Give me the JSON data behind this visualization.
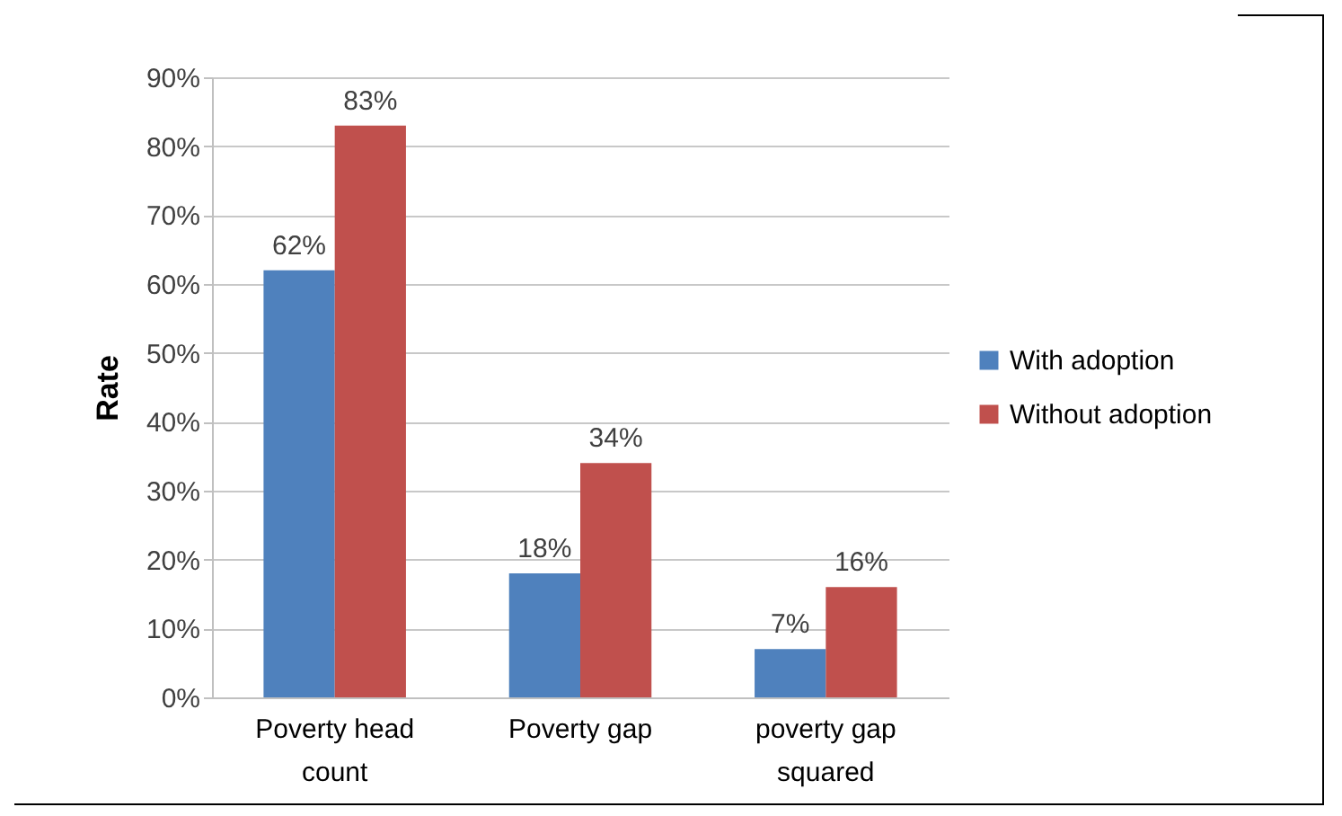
{
  "chart_data": {
    "type": "bar",
    "ylabel": "Rate",
    "categories": [
      "Poverty head count",
      "Poverty gap",
      "poverty gap squared"
    ],
    "series": [
      {
        "name": "With adoption",
        "color": "#4f81bd",
        "values": [
          62,
          18,
          7
        ],
        "value_labels": [
          "62%",
          "18%",
          "7%"
        ]
      },
      {
        "name": "Without  adoption",
        "color": "#c0504d",
        "values": [
          83,
          34,
          16
        ],
        "value_labels": [
          "83%",
          "34%",
          "16%"
        ]
      }
    ],
    "ylim": [
      0,
      90
    ],
    "yticks": [
      {
        "value": 0,
        "label": "0%"
      },
      {
        "value": 10,
        "label": "10%"
      },
      {
        "value": 20,
        "label": "20%"
      },
      {
        "value": 30,
        "label": "30%"
      },
      {
        "value": 40,
        "label": "40%"
      },
      {
        "value": 50,
        "label": "50%"
      },
      {
        "value": 60,
        "label": "60%"
      },
      {
        "value": 70,
        "label": "70%"
      },
      {
        "value": 80,
        "label": "80%"
      },
      {
        "value": 90,
        "label": "90%"
      }
    ],
    "grid": "y",
    "legend": "right"
  }
}
